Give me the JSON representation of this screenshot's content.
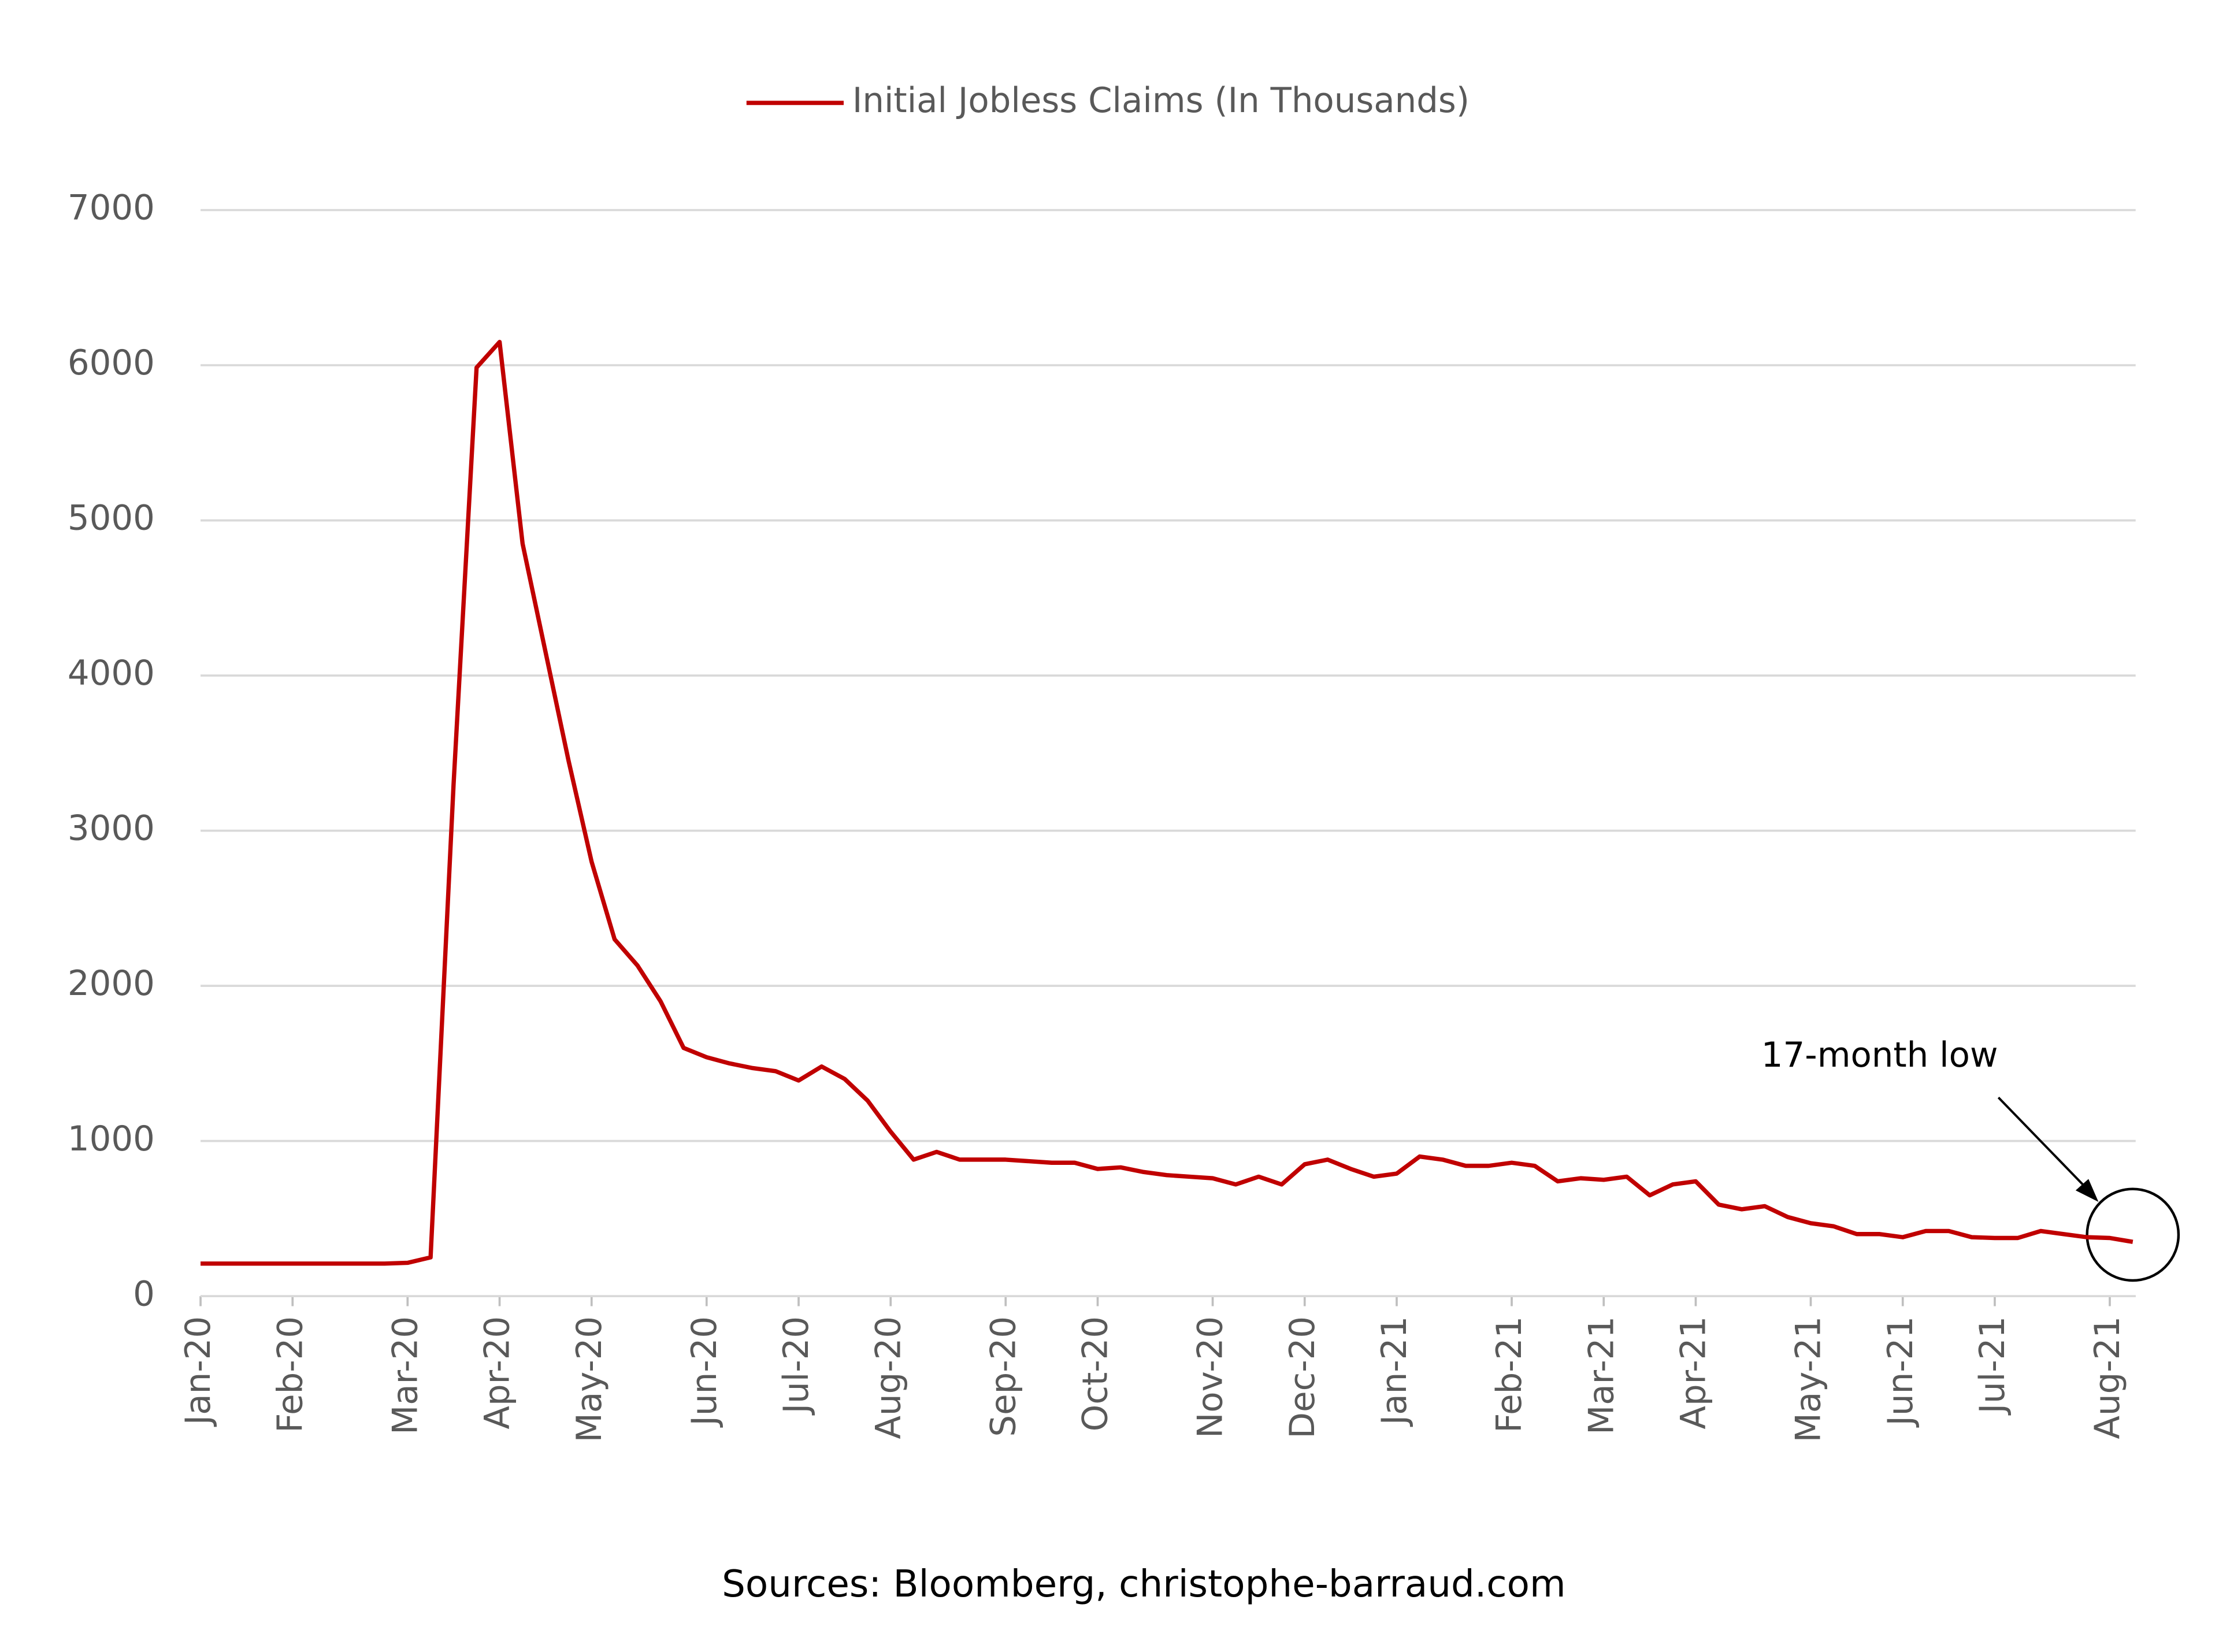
{
  "chart_data": {
    "type": "line",
    "categories": [
      "Jan-20",
      null,
      null,
      null,
      "Feb-20",
      null,
      null,
      null,
      null,
      "Mar-20",
      null,
      null,
      null,
      "Apr-20",
      null,
      null,
      null,
      "May-20",
      null,
      null,
      null,
      null,
      "Jun-20",
      null,
      null,
      null,
      "Jul-20",
      null,
      null,
      null,
      "Aug-20",
      null,
      null,
      null,
      null,
      "Sep-20",
      null,
      null,
      null,
      "Oct-20",
      null,
      null,
      null,
      null,
      "Nov-20",
      null,
      null,
      null,
      "Dec-20",
      null,
      null,
      null,
      "Jan-21",
      null,
      null,
      null,
      null,
      "Feb-21",
      null,
      null,
      null,
      "Mar-21",
      null,
      null,
      null,
      "Apr-21",
      null,
      null,
      null,
      null,
      "May-21",
      null,
      null,
      null,
      "Jun-21",
      null,
      null,
      null,
      "Jul-21",
      null,
      null,
      null,
      null,
      "Aug-21",
      null
    ],
    "series": [
      {
        "name": "Initial Jobless Claims (In Thousands)",
        "color": "#c00000",
        "values": [
          210,
          210,
          210,
          210,
          210,
          210,
          210,
          210,
          210,
          215,
          250,
          3300,
          5985,
          6150,
          4850,
          4150,
          3450,
          2800,
          2300,
          2130,
          1900,
          1600,
          1540,
          1500,
          1470,
          1450,
          1390,
          1480,
          1400,
          1260,
          1060,
          880,
          930,
          880,
          880,
          880,
          870,
          860,
          860,
          820,
          830,
          800,
          780,
          770,
          760,
          720,
          770,
          720,
          850,
          880,
          820,
          770,
          790,
          900,
          880,
          840,
          840,
          860,
          840,
          740,
          760,
          750,
          770,
          650,
          720,
          740,
          590,
          560,
          580,
          510,
          470,
          450,
          400,
          400,
          380,
          420,
          420,
          380,
          375,
          375,
          420,
          400,
          380,
          375,
          350
        ]
      }
    ],
    "ylim": [
      0,
      7000
    ],
    "yticks": [
      0,
      1000,
      2000,
      3000,
      4000,
      5000,
      6000,
      7000
    ],
    "grid": true,
    "legend": "top",
    "annotation": "17-month low",
    "source": "Sources: Bloomberg, christophe-barraud.com"
  }
}
